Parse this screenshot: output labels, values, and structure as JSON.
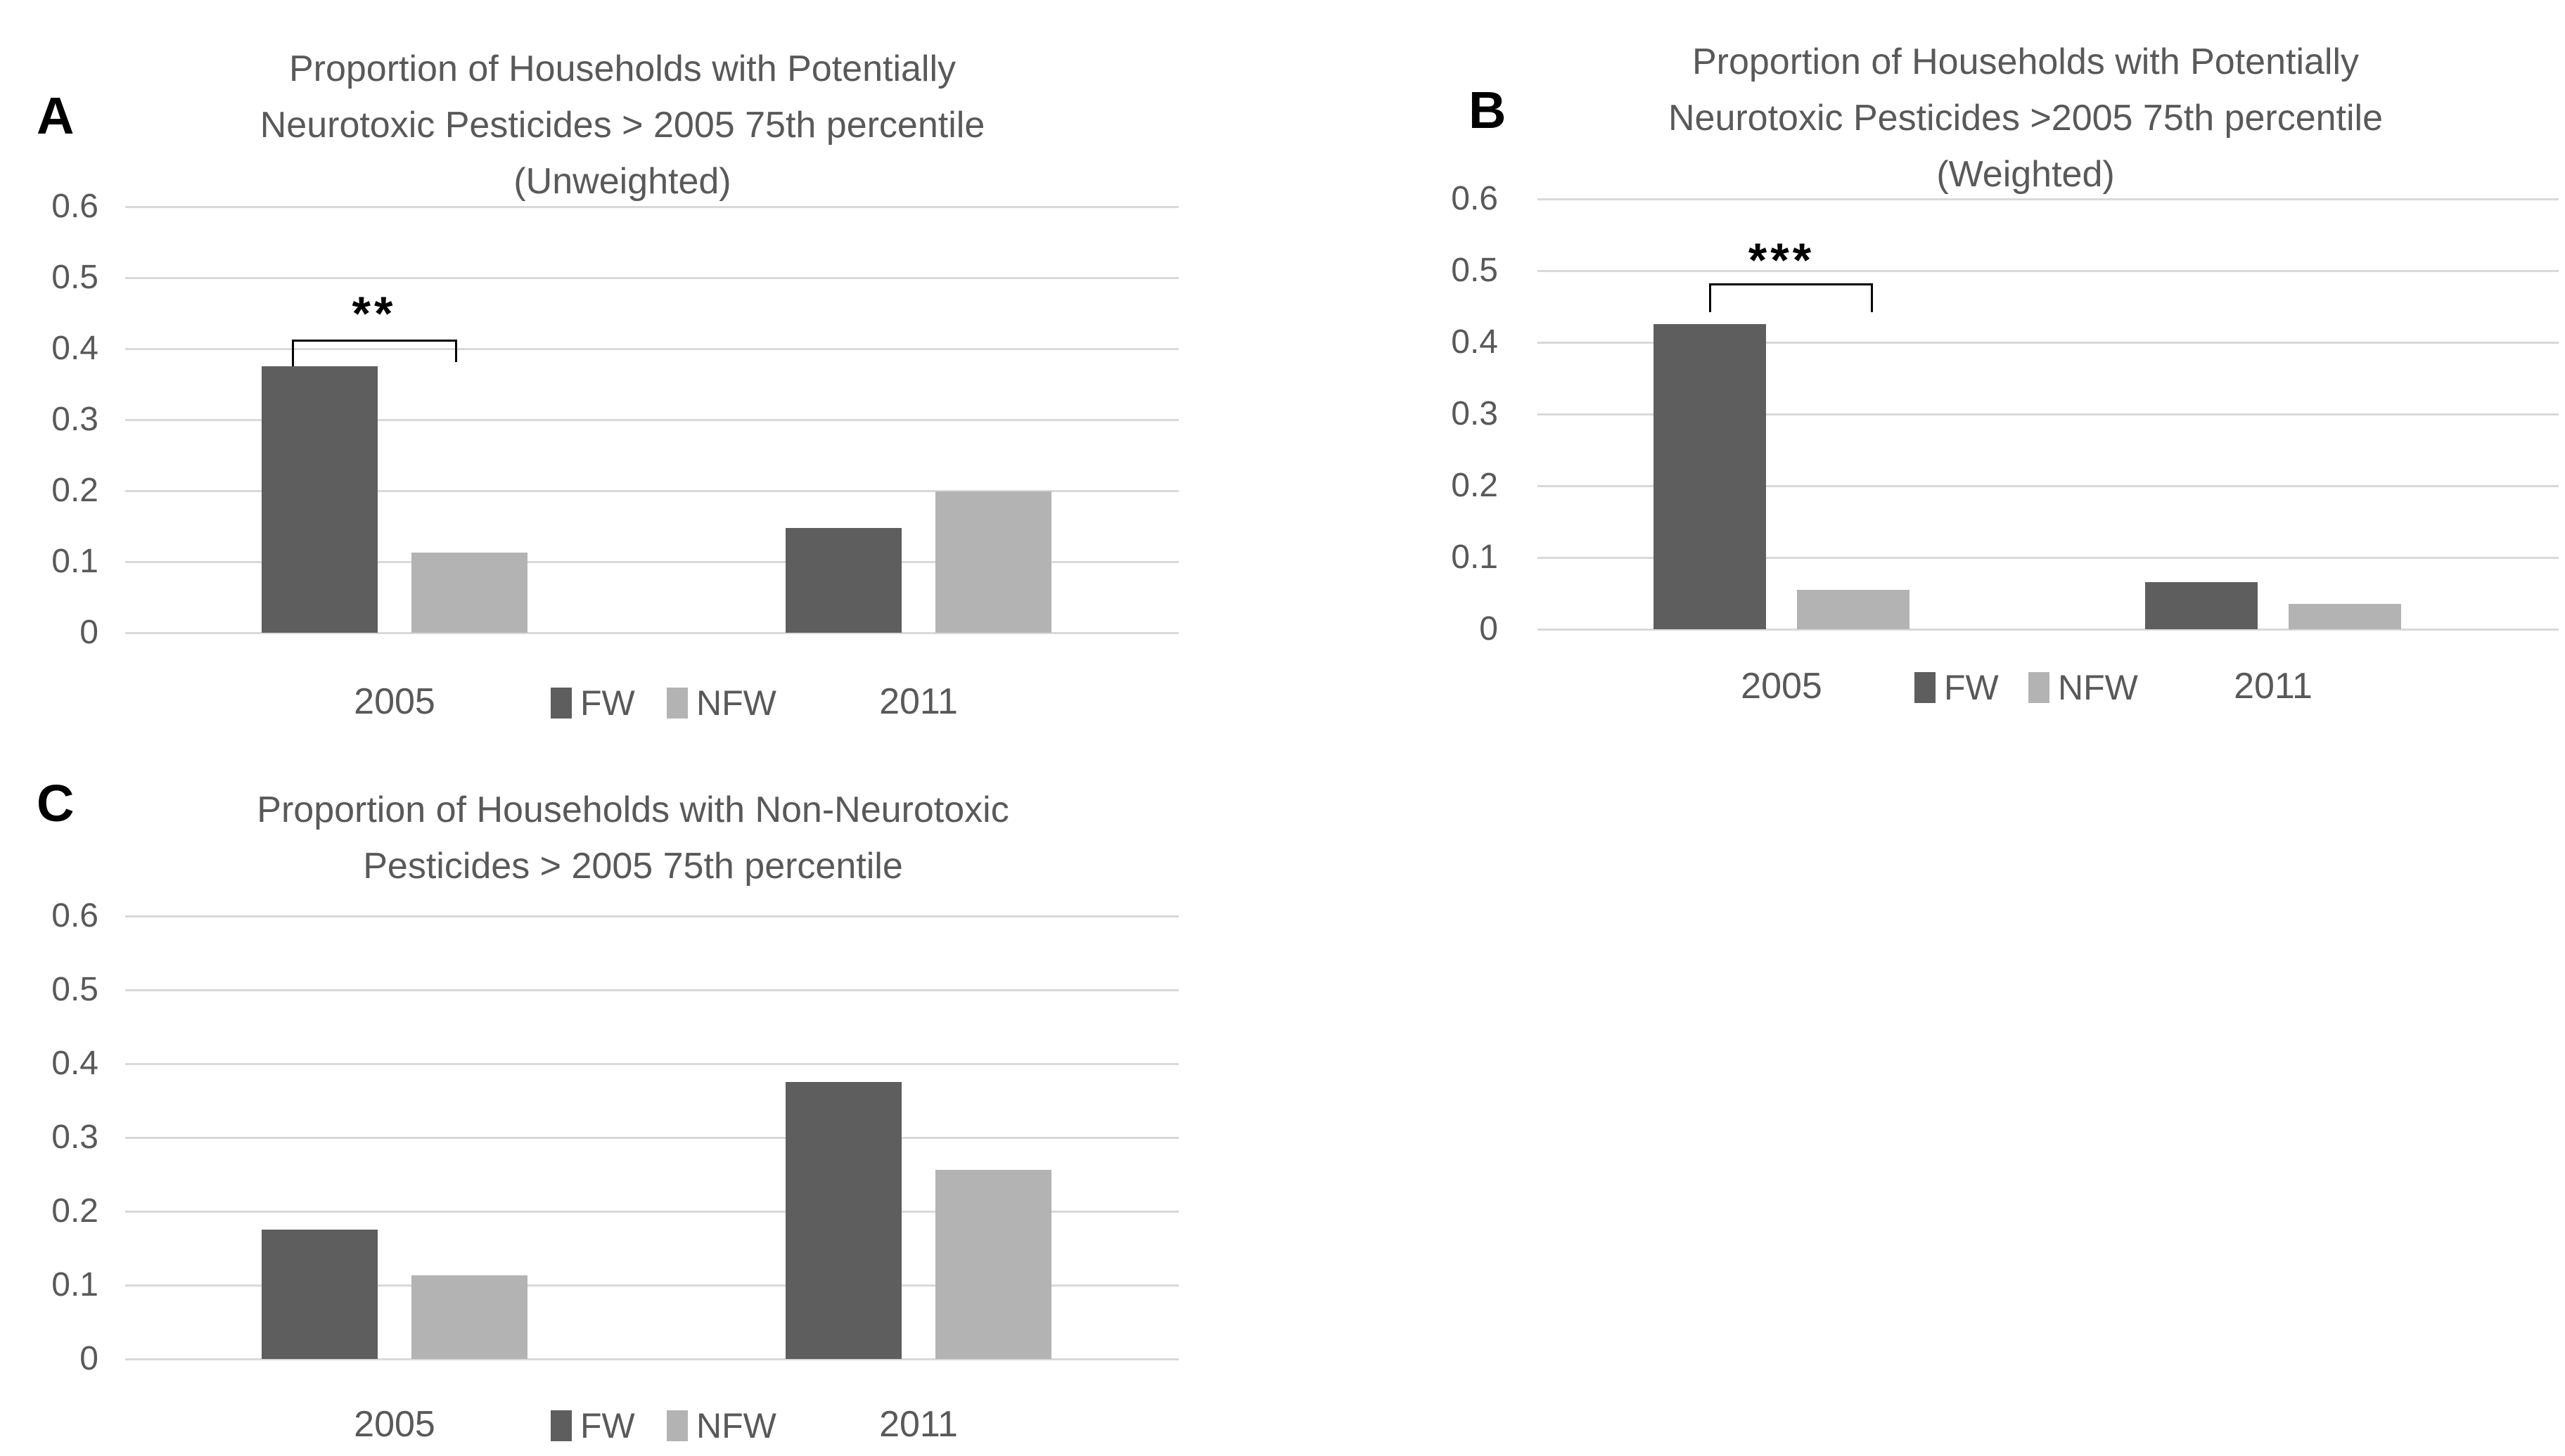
{
  "figure": {
    "background": "#ffffff",
    "text_color": "#595959",
    "colors": {
      "fw": "#5e5e5e",
      "nfw": "#b3b3b3",
      "gridline": "#d9d9d9",
      "bracket": "#000000",
      "panel_letter": "#000000"
    },
    "legend": {
      "items": [
        {
          "key": "fw",
          "label": "FW"
        },
        {
          "key": "nfw",
          "label": "NFW"
        }
      ]
    }
  },
  "chart_data": [
    {
      "id": "A",
      "panel_label": "A",
      "type": "bar",
      "title_lines": [
        "Proportion of Households with Potentially",
        "Neurotoxic Pesticides > 2005 75th percentile",
        "(Unweighted)"
      ],
      "categories": [
        "2005",
        "2011"
      ],
      "series": [
        {
          "name": "FW",
          "values": [
            0.375,
            0.148
          ]
        },
        {
          "name": "NFW",
          "values": [
            0.113,
            0.199
          ]
        }
      ],
      "ylim": [
        0,
        0.6
      ],
      "yticks": [
        "0.6",
        "0.5",
        "0.4",
        "0.3",
        "0.2",
        "0.1",
        "0"
      ],
      "grid": true,
      "legend_position": "bottom-center",
      "significance": {
        "label": "**",
        "between": [
          "FW 2005",
          "NFW 2005"
        ]
      }
    },
    {
      "id": "B",
      "panel_label": "B",
      "type": "bar",
      "title_lines": [
        "Proportion of Households with Potentially",
        "Neurotoxic Pesticides >2005 75th percentile",
        "(Weighted)"
      ],
      "categories": [
        "2005",
        "2011"
      ],
      "series": [
        {
          "name": "FW",
          "values": [
            0.425,
            0.066
          ]
        },
        {
          "name": "NFW",
          "values": [
            0.055,
            0.035
          ]
        }
      ],
      "ylim": [
        0,
        0.6
      ],
      "yticks": [
        "0.6",
        "0.5",
        "0.4",
        "0.3",
        "0.2",
        "0.1",
        "0"
      ],
      "grid": true,
      "legend_position": "bottom-center",
      "significance": {
        "label": "***",
        "between": [
          "FW 2005",
          "NFW 2005"
        ]
      }
    },
    {
      "id": "C",
      "panel_label": "C",
      "type": "bar",
      "title_lines": [
        "Proportion of Households with Non-Neurotoxic",
        "Pesticides > 2005 75th percentile"
      ],
      "categories": [
        "2005",
        "2011"
      ],
      "series": [
        {
          "name": "FW",
          "values": [
            0.175,
            0.375
          ]
        },
        {
          "name": "NFW",
          "values": [
            0.113,
            0.256
          ]
        }
      ],
      "ylim": [
        0,
        0.6
      ],
      "yticks": [
        "0.6",
        "0.5",
        "0.4",
        "0.3",
        "0.2",
        "0.1",
        "0"
      ],
      "grid": true,
      "legend_position": "bottom-center",
      "significance": null
    }
  ]
}
